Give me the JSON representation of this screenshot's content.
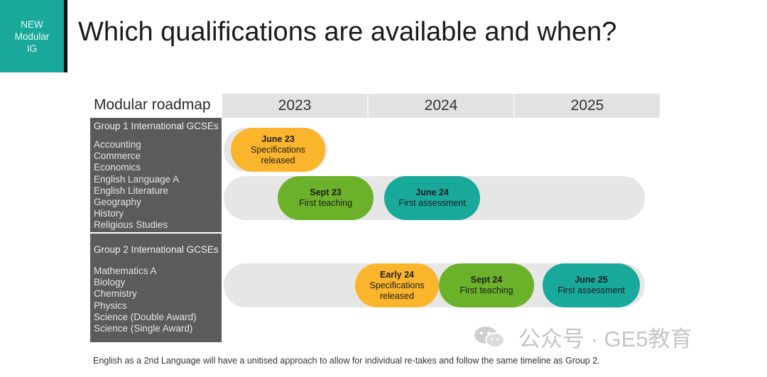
{
  "badge": {
    "line1": "NEW",
    "line2": "Modular",
    "line3": "IG"
  },
  "title": "Which qualifications are available and when?",
  "roadmap": {
    "label": "Modular roadmap",
    "years": [
      "2023",
      "2024",
      "2025"
    ]
  },
  "group1": {
    "title": "Group 1 International GCSEs",
    "subjects": [
      "Accounting",
      "Commerce",
      "Economics",
      "English Language  A",
      "English Literature",
      "Geography",
      "History",
      "Religious Studies"
    ]
  },
  "group2": {
    "title": "Group 2 International GCSEs",
    "subjects": [
      "Mathematics A",
      "Biology",
      "Chemistry",
      "Physics",
      "Science (Double Award)",
      "Science (Single Award)"
    ]
  },
  "milestones": {
    "g1_spec": {
      "date": "June 23",
      "text": "Specifications released"
    },
    "g1_teach": {
      "date": "Sept 23",
      "text": "First teaching"
    },
    "g1_assess": {
      "date": "June 24",
      "text": "First assessment"
    },
    "g2_spec": {
      "date": "Early 24",
      "text": "Specifications released"
    },
    "g2_teach": {
      "date": "Sept 24",
      "text": "First teaching"
    },
    "g2_assess": {
      "date": "June 25",
      "text": "First assessment"
    }
  },
  "footnote": "English as a 2nd Language will have a unitised approach to allow for individual re-takes and follow the same timeline as Group 2.",
  "watermark": "公众号 · GE5教育",
  "colors": {
    "badge": "#1aa89a",
    "yellow": "#fbb52d",
    "green": "#6cb12a",
    "teal": "#19a99a",
    "panel": "#5b5b5b"
  }
}
